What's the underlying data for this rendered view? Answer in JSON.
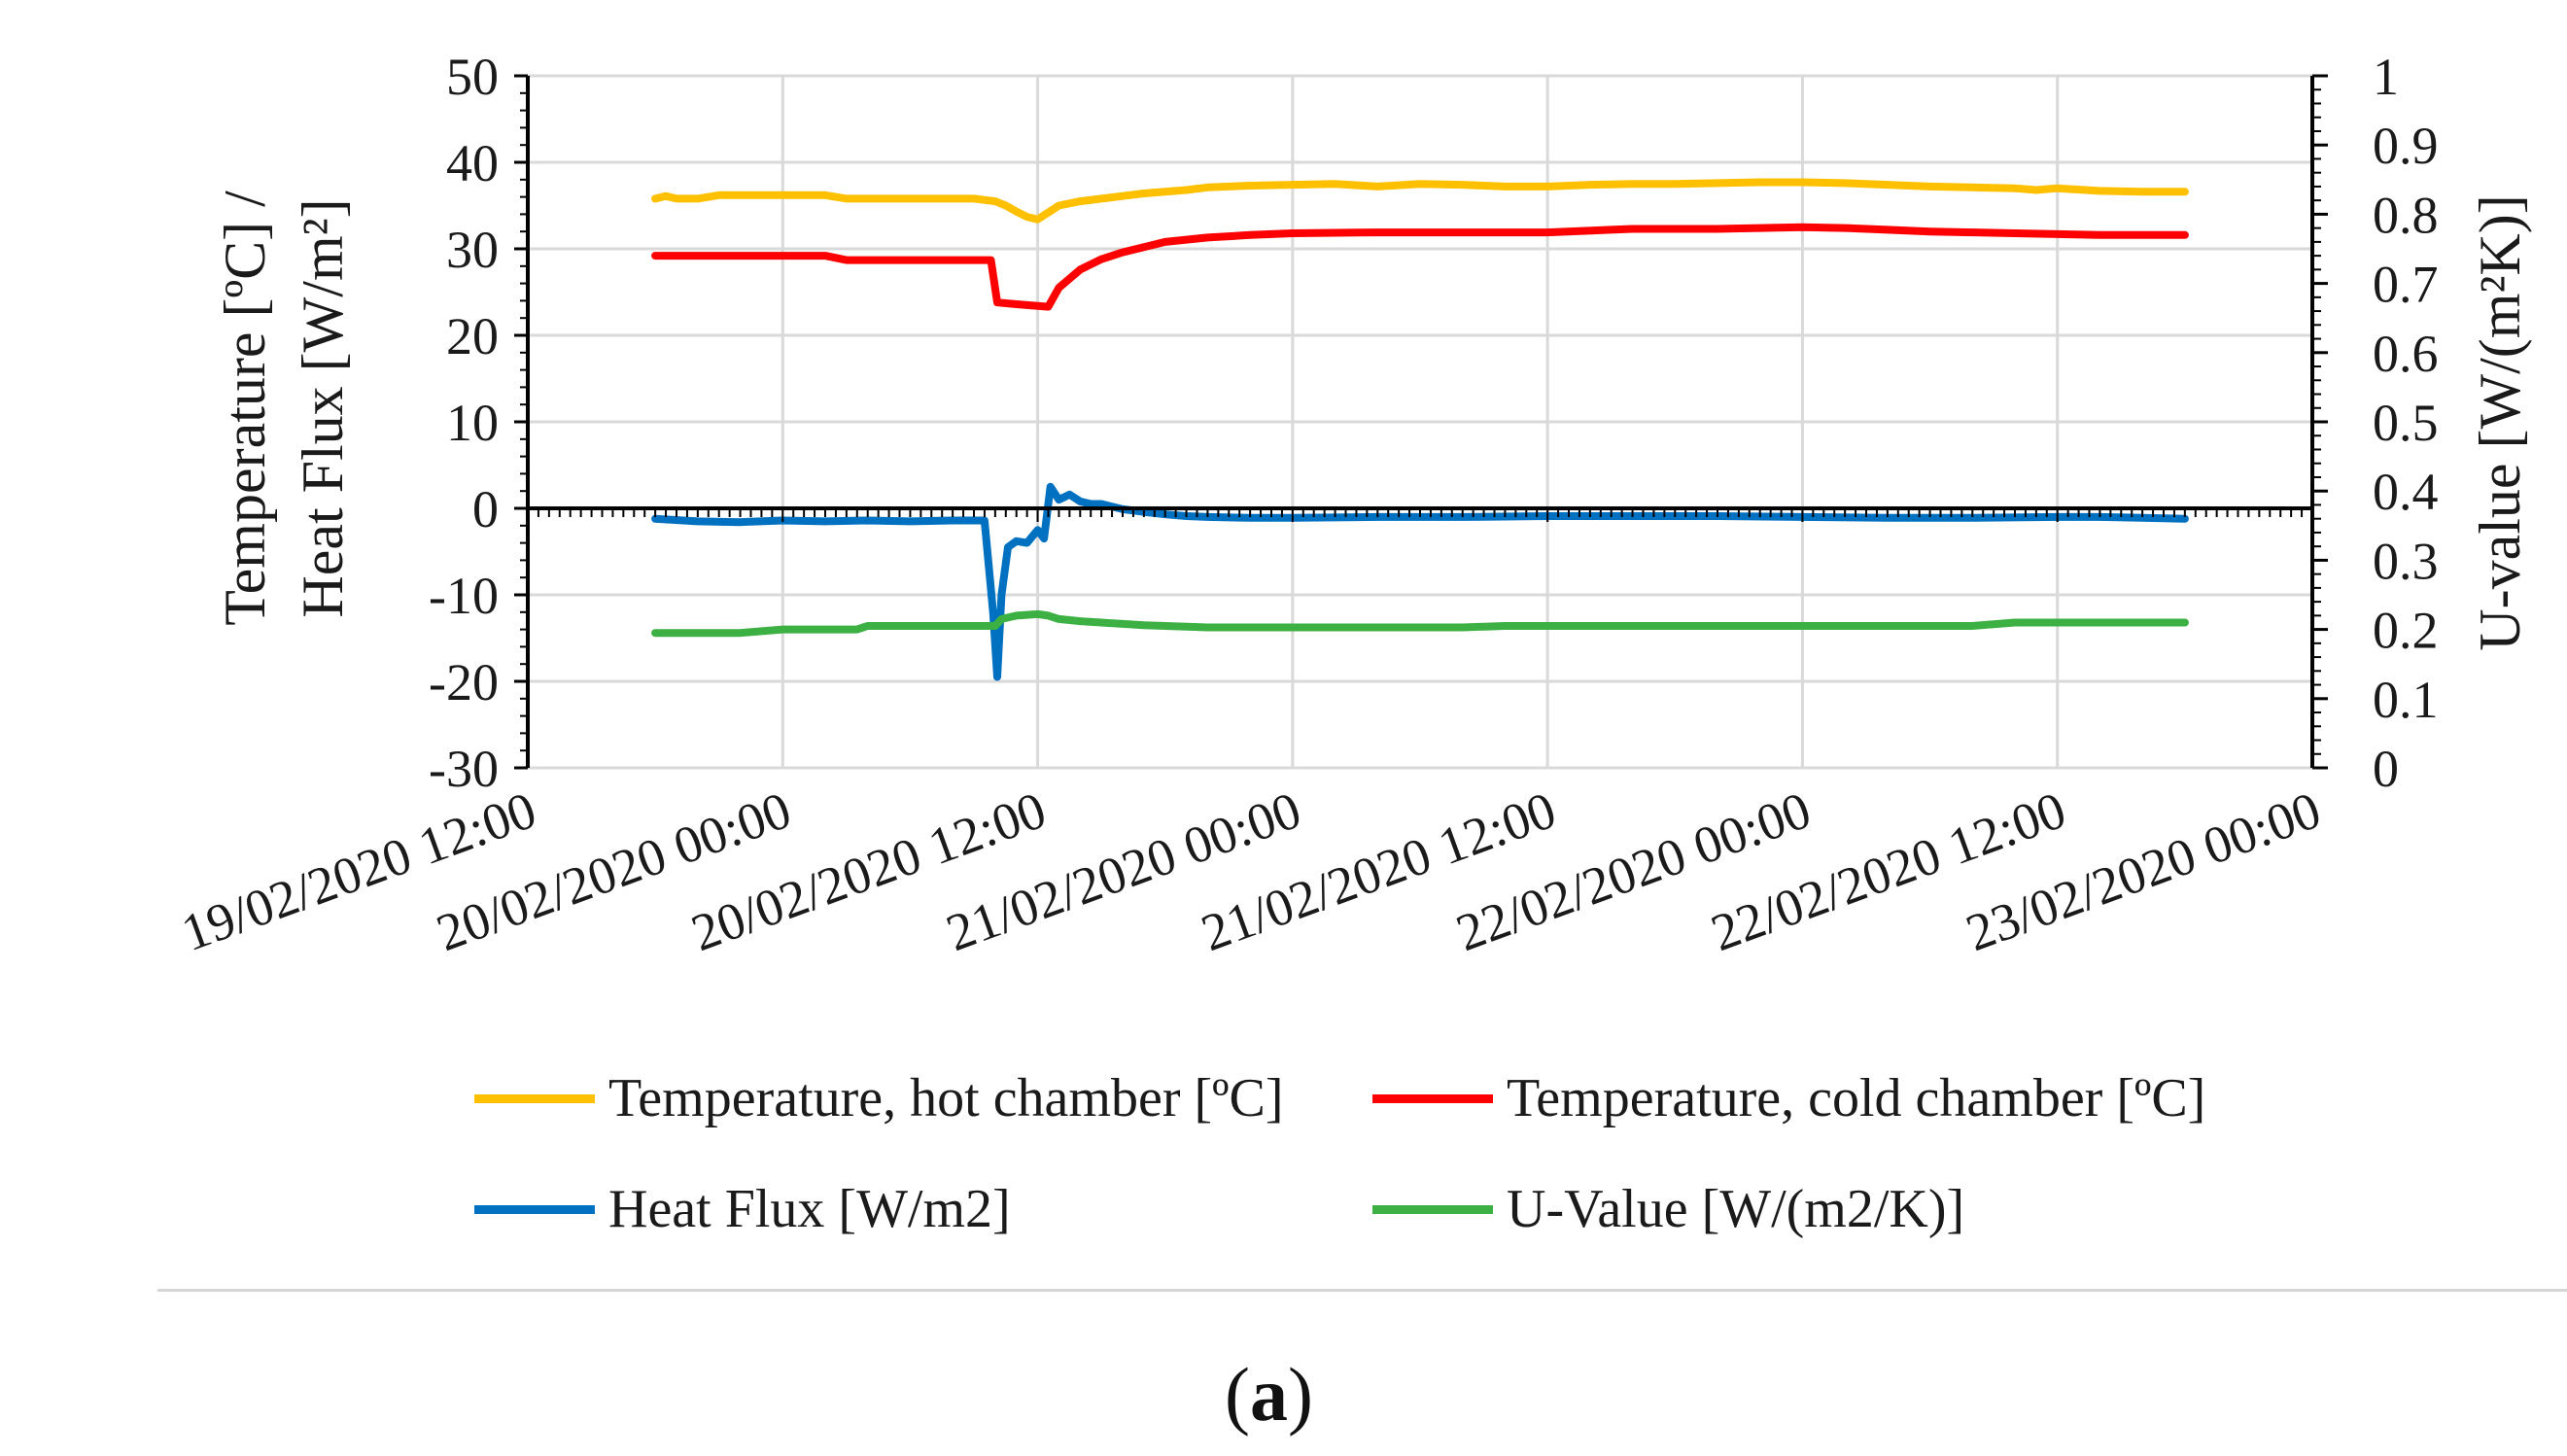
{
  "chart_data": {
    "type": "line",
    "x_unit": "hours since 19/02/2020 12:00",
    "x_ticks": [
      {
        "t": 0,
        "label": "19/02/2020 12:00"
      },
      {
        "t": 12,
        "label": "20/02/2020 00:00"
      },
      {
        "t": 24,
        "label": "20/02/2020 12:00"
      },
      {
        "t": 36,
        "label": "21/02/2020 00:00"
      },
      {
        "t": 48,
        "label": "21/02/2020 12:00"
      },
      {
        "t": 60,
        "label": "22/02/2020 00:00"
      },
      {
        "t": 72,
        "label": "22/02/2020 12:00"
      },
      {
        "t": 84,
        "label": "23/02/2020 00:00"
      }
    ],
    "xlim": [
      0,
      84
    ],
    "ylim": [
      -30,
      50
    ],
    "y_ticks": [
      50,
      40,
      30,
      20,
      10,
      0,
      -10,
      -20,
      -30
    ],
    "ylim_right": [
      0,
      1
    ],
    "y_ticks_right": [
      "1",
      "0.9",
      "0.8",
      "0.7",
      "0.6",
      "0.5",
      "0.4",
      "0.3",
      "0.2",
      "0.1",
      "0"
    ],
    "ylabel_left_line1": "Temperature [ºC] /",
    "ylabel_left_line2": "Heat Flux [W/m²]",
    "ylabel_right": "U-value [W/(m²K)]",
    "grid": true,
    "legend_position": "bottom",
    "series": [
      {
        "name": "Temperature, hot chamber [ºC]",
        "color": "#FFC000",
        "axis": "left",
        "x": [
          6,
          6.5,
          7,
          8,
          9,
          10,
          12,
          14,
          15,
          16,
          18,
          20,
          21,
          22,
          22.5,
          23,
          23.5,
          24,
          24.5,
          25,
          26,
          27,
          28,
          29,
          30,
          31,
          32,
          34,
          36,
          38,
          40,
          42,
          44,
          46,
          48,
          50,
          52,
          54,
          56,
          58,
          60,
          62,
          64,
          66,
          68,
          70,
          71,
          72,
          74,
          76,
          78
        ],
        "y": [
          35.8,
          36.1,
          35.8,
          35.8,
          36.2,
          36.2,
          36.2,
          36.2,
          35.8,
          35.8,
          35.8,
          35.8,
          35.8,
          35.5,
          35,
          34.3,
          33.7,
          33.4,
          34.2,
          35,
          35.5,
          35.8,
          36.1,
          36.4,
          36.6,
          36.8,
          37.1,
          37.3,
          37.4,
          37.5,
          37.2,
          37.5,
          37.4,
          37.2,
          37.2,
          37.4,
          37.5,
          37.5,
          37.6,
          37.7,
          37.7,
          37.6,
          37.4,
          37.2,
          37.1,
          37.0,
          36.8,
          37.0,
          36.7,
          36.6,
          36.6
        ]
      },
      {
        "name": "Temperature, cold chamber [ºC]",
        "color": "#FF0000",
        "axis": "left",
        "x": [
          6,
          8,
          10,
          12,
          14,
          15,
          16,
          18,
          20,
          21.8,
          22.1,
          23,
          24,
          24.5,
          25,
          26,
          27,
          28,
          29,
          30,
          32,
          34,
          36,
          40,
          44,
          48,
          52,
          56,
          58,
          60,
          62,
          64,
          66,
          68,
          70,
          72,
          74,
          76,
          78
        ],
        "y": [
          29.2,
          29.2,
          29.2,
          29.2,
          29.2,
          28.7,
          28.7,
          28.7,
          28.7,
          28.7,
          23.8,
          23.6,
          23.4,
          23.3,
          25.5,
          27.6,
          28.8,
          29.6,
          30.2,
          30.8,
          31.3,
          31.6,
          31.8,
          31.9,
          31.9,
          31.9,
          32.3,
          32.3,
          32.4,
          32.5,
          32.4,
          32.2,
          32.0,
          31.9,
          31.8,
          31.7,
          31.6,
          31.6,
          31.6
        ]
      },
      {
        "name": "Heat Flux [W/m2]",
        "color": "#0070C0",
        "axis": "left",
        "x": [
          6,
          8,
          10,
          12,
          14,
          16,
          18,
          20,
          21.5,
          21.9,
          22.1,
          22.3,
          22.6,
          23,
          23.5,
          24,
          24.3,
          24.6,
          25,
          25.5,
          26,
          26.5,
          27,
          28,
          29,
          30,
          31,
          32,
          34,
          36,
          40,
          44,
          48,
          52,
          56,
          60,
          64,
          68,
          72,
          74,
          76,
          78
        ],
        "y": [
          -1.2,
          -1.5,
          -1.6,
          -1.4,
          -1.5,
          -1.4,
          -1.5,
          -1.4,
          -1.4,
          -12,
          -19.5,
          -10,
          -4.5,
          -3.8,
          -4,
          -2.5,
          -3.5,
          2.5,
          1,
          1.6,
          0.8,
          0.5,
          0.5,
          -0.1,
          -0.4,
          -0.7,
          -0.9,
          -1.0,
          -1.1,
          -1.1,
          -1.0,
          -1.0,
          -0.9,
          -0.9,
          -0.9,
          -1.0,
          -1.1,
          -1.1,
          -1.0,
          -1.0,
          -1.1,
          -1.2
        ]
      },
      {
        "name": "U-Value [W/(m2/K)]",
        "color": "#3CB043",
        "axis": "right",
        "x": [
          6,
          8,
          10,
          12,
          14,
          15.5,
          16,
          18,
          20,
          22,
          22.3,
          23,
          24,
          24.5,
          25,
          26,
          27,
          28,
          29,
          30,
          31,
          32,
          34,
          36,
          38,
          40,
          42,
          44,
          46,
          48,
          50,
          52,
          54,
          56,
          58,
          60,
          62,
          64,
          66,
          68,
          70,
          72,
          74,
          76,
          78
        ],
        "y": [
          0.195,
          0.195,
          0.195,
          0.2,
          0.2,
          0.2,
          0.205,
          0.205,
          0.205,
          0.205,
          0.215,
          0.22,
          0.222,
          0.22,
          0.215,
          0.212,
          0.21,
          0.208,
          0.206,
          0.205,
          0.204,
          0.203,
          0.203,
          0.203,
          0.203,
          0.203,
          0.203,
          0.203,
          0.205,
          0.205,
          0.205,
          0.205,
          0.205,
          0.205,
          0.205,
          0.205,
          0.205,
          0.205,
          0.205,
          0.205,
          0.21,
          0.21,
          0.21,
          0.21,
          0.21
        ]
      }
    ]
  },
  "legend": {
    "hot_label": "Temperature, hot chamber [ºC]",
    "cold_label": "Temperature, cold chamber [ºC]",
    "flux_label": "Heat Flux [W/m2]",
    "uvalue_label": "U-Value [W/(m2/K)]"
  },
  "caption": {
    "open": "(",
    "letter": "a",
    "close": ")"
  }
}
